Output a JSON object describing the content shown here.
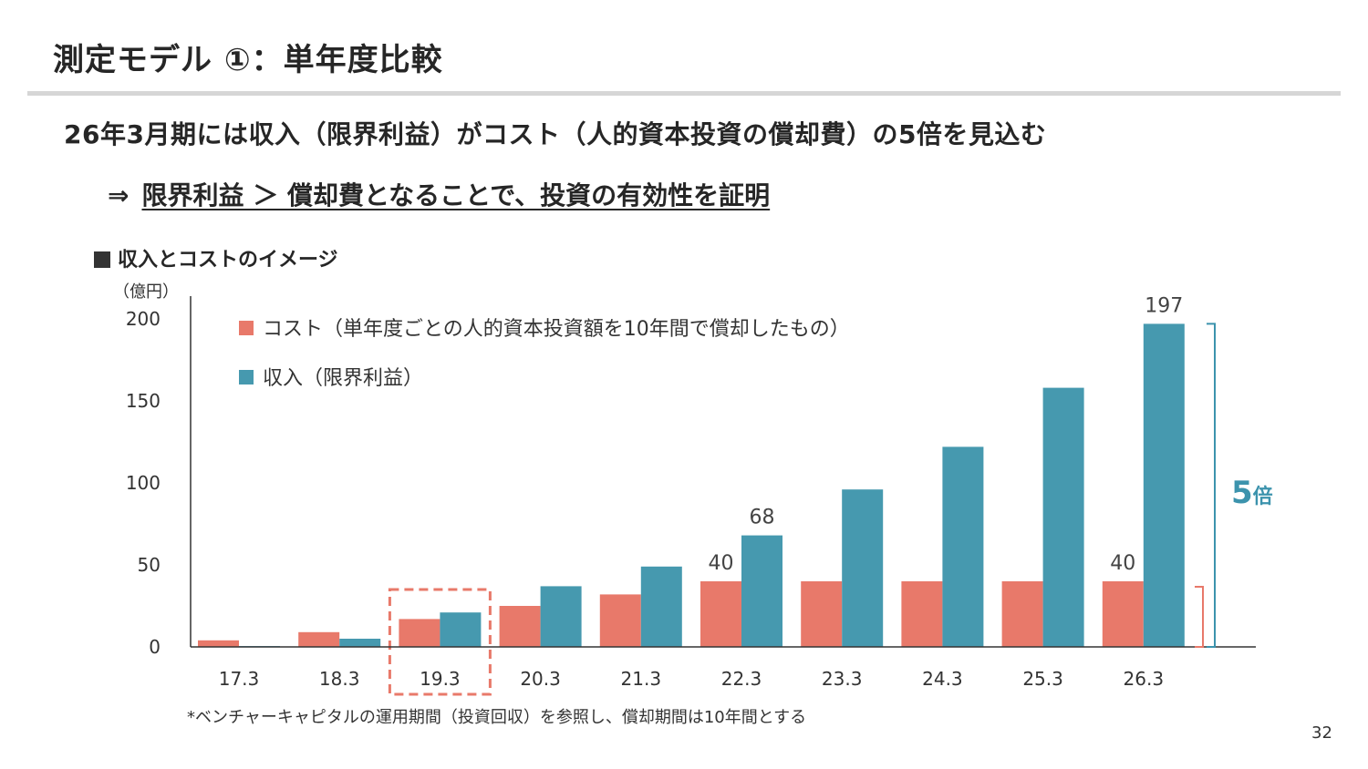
{
  "title": "測定モデル ①：単年度比較",
  "headline": "26年3月期には収入（限界利益）がコスト（人的資本投資の償却費）の5倍を見込む",
  "subline": {
    "arrow": "⇒",
    "text": "限界利益 ＞ 償却費となることで、投資の有効性を証明"
  },
  "chart_heading": "収入とコストのイメージ",
  "footnote": "*ベンチャーキャピタルの運用期間（投資回収）を参照し、償却期間は10年間とする",
  "page_number": "32",
  "colors": {
    "cost": "#E8796A",
    "revenue": "#4699AF",
    "accent": "#3C93AD",
    "highlight_box": "#E8796A"
  },
  "chart_data": {
    "type": "bar",
    "unit_label": "（億円）",
    "categories": [
      "17.3",
      "18.3",
      "19.3",
      "20.3",
      "21.3",
      "22.3",
      "23.3",
      "24.3",
      "25.3",
      "26.3"
    ],
    "series": [
      {
        "name": "コスト（単年度ごとの人的資本投資額を10年間で償却したもの）",
        "values": [
          4,
          9,
          17,
          25,
          32,
          40,
          40,
          40,
          40,
          40
        ]
      },
      {
        "name": "収入（限界利益）",
        "values": [
          0.5,
          5,
          21,
          37,
          49,
          68,
          96,
          122,
          158,
          197
        ]
      }
    ],
    "data_labels": [
      {
        "series": 0,
        "category": "22.3",
        "text": "40"
      },
      {
        "series": 1,
        "category": "22.3",
        "text": "68"
      },
      {
        "series": 0,
        "category": "26.3",
        "text": "40"
      },
      {
        "series": 1,
        "category": "26.3",
        "text": "197"
      }
    ],
    "y_ticks": [
      0,
      50,
      100,
      150,
      200
    ],
    "ylim": [
      0,
      215
    ],
    "grid": false,
    "legend_position": "top-left",
    "highlight_category": "19.3",
    "ratio_annotation": {
      "number": "5",
      "unit": "倍"
    }
  }
}
